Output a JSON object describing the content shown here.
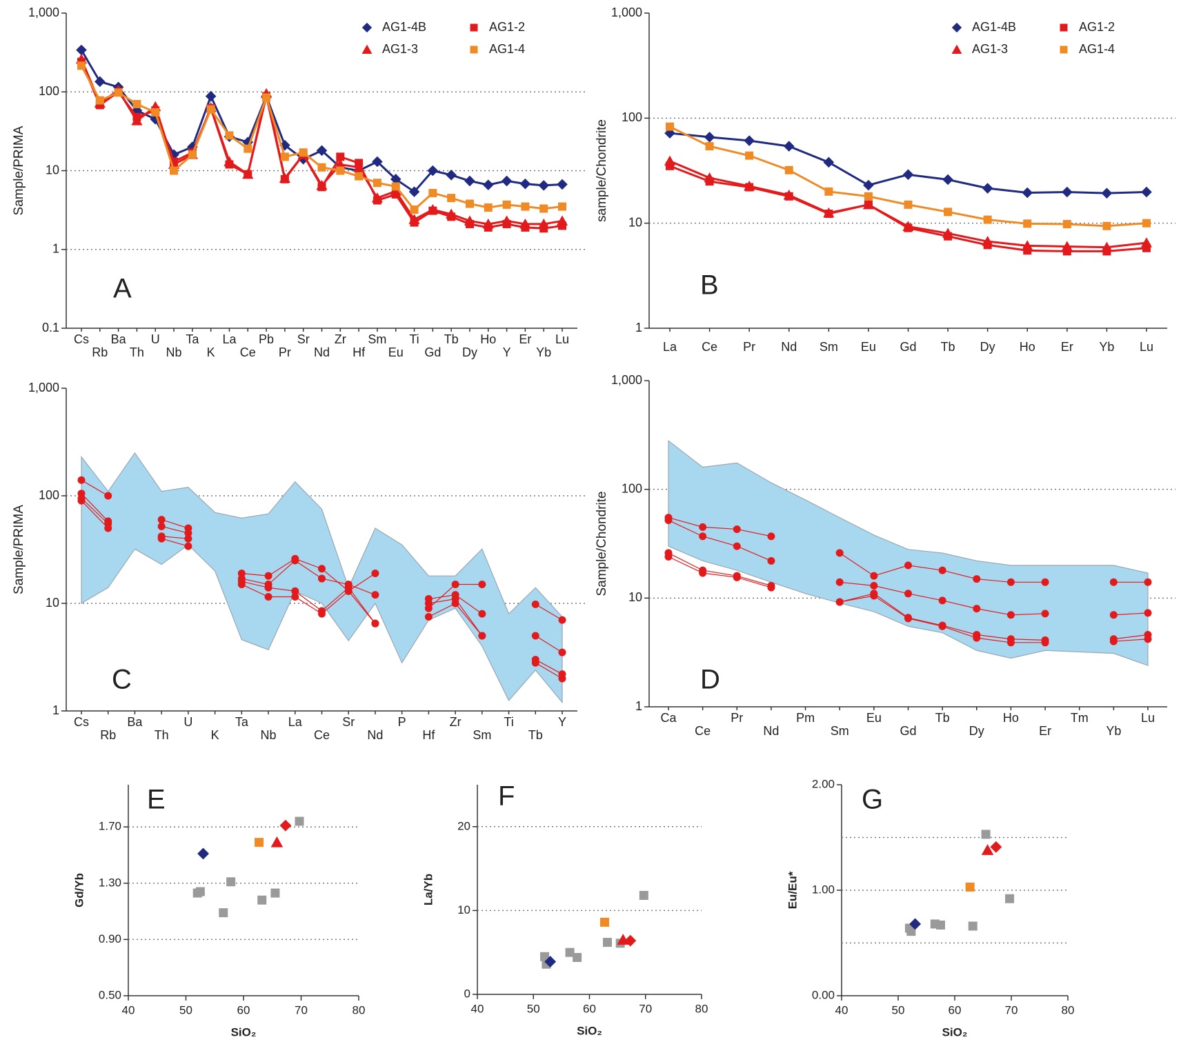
{
  "chart_data": [
    {
      "type": "line",
      "annotation": "A",
      "ylabel": "Sample/PRIMA",
      "log_y": true,
      "ylim": [
        0.1,
        1000
      ],
      "yticks": [
        0.1,
        1,
        10,
        100,
        {
          "value": 1000,
          "label": "1,000"
        }
      ],
      "grid": true,
      "x_label_stagger": true,
      "legend": "upper right",
      "categories": [
        "Cs",
        "Rb",
        "Ba",
        "Th",
        "U",
        "Nb",
        "Ta",
        "K",
        "La",
        "Ce",
        "Pb",
        "Pr",
        "Sr",
        "Nd",
        "Zr",
        "Hf",
        "Sm",
        "Eu",
        "Ti",
        "Gd",
        "Tb",
        "Dy",
        "Ho",
        "Y",
        "Er",
        "Yb",
        "Lu"
      ],
      "series": [
        {
          "name": "AG1-4B",
          "color": "#1f2a80",
          "marker": "diamond",
          "values": [
            340,
            135,
            115,
            58,
            45,
            16,
            20,
            88,
            27,
            23,
            88,
            21,
            14,
            18,
            11,
            10,
            13,
            7.8,
            5.4,
            10,
            8.8,
            7.4,
            6.6,
            7.4,
            6.8,
            6.5,
            6.7
          ]
        },
        {
          "name": "AG1-2",
          "color": "#e31a1c",
          "marker": "square",
          "values": [
            240,
            68,
            100,
            48,
            58,
            13,
            17,
            62,
            12,
            9,
            88,
            7.8,
            16,
            6.2,
            15,
            12.5,
            4.2,
            5,
            2.2,
            3.1,
            2.6,
            2.1,
            1.9,
            2.1,
            1.9,
            1.85,
            2
          ]
        },
        {
          "name": "AG1-3",
          "color": "#e31a1c",
          "marker": "triangle",
          "values": [
            260,
            72,
            105,
            43,
            65,
            12,
            16,
            63,
            13,
            9,
            95,
            8,
            16,
            6.5,
            12,
            11,
            4.5,
            5.5,
            2.4,
            3.2,
            2.8,
            2.3,
            2.1,
            2.3,
            2.1,
            2.1,
            2.3
          ]
        },
        {
          "name": "AG1-4",
          "color": "#f08a24",
          "marker": "square",
          "values": [
            215,
            78,
            98,
            70,
            55,
            10,
            16,
            60,
            28,
            19,
            85,
            15,
            17,
            11,
            10,
            8.5,
            7,
            6.3,
            3.2,
            5.2,
            4.5,
            3.8,
            3.4,
            3.7,
            3.5,
            3.3,
            3.5
          ]
        }
      ]
    },
    {
      "type": "line",
      "annotation": "B",
      "ylabel": "sample/Chondrite",
      "log_y": true,
      "ylim": [
        1,
        1000
      ],
      "yticks": [
        1,
        10,
        100,
        {
          "value": 1000,
          "label": "1,000"
        }
      ],
      "grid": true,
      "legend": "upper right",
      "categories": [
        "La",
        "Ce",
        "Pr",
        "Nd",
        "Sm",
        "Eu",
        "Gd",
        "Tb",
        "Dy",
        "Ho",
        "Er",
        "Yb",
        "Lu"
      ],
      "series": [
        {
          "name": "AG1-4B",
          "color": "#1f2a80",
          "marker": "diamond",
          "values": [
            72,
            66,
            61,
            54,
            38,
            23,
            29,
            26,
            21.5,
            19.5,
            19.8,
            19.3,
            19.8
          ]
        },
        {
          "name": "AG1-2",
          "color": "#e31a1c",
          "marker": "square",
          "values": [
            35,
            25,
            22,
            18,
            12.3,
            15,
            9,
            7.5,
            6.2,
            5.5,
            5.4,
            5.4,
            5.8
          ]
        },
        {
          "name": "AG1-3",
          "color": "#e31a1c",
          "marker": "triangle",
          "values": [
            39,
            27,
            22.5,
            18.5,
            12.5,
            15,
            9.3,
            8,
            6.7,
            6.1,
            6,
            5.9,
            6.5
          ]
        },
        {
          "name": "AG1-4",
          "color": "#f08a24",
          "marker": "square",
          "values": [
            83,
            54,
            44,
            32,
            20,
            18,
            15,
            12.8,
            10.8,
            9.9,
            9.8,
            9.4,
            10
          ]
        }
      ]
    },
    {
      "type": "line",
      "annotation": "C",
      "ylabel": "Sample/PRIMA",
      "log_y": true,
      "ylim": [
        1,
        1000
      ],
      "yticks": [
        1,
        10,
        100,
        {
          "value": 1000,
          "label": "1,000"
        }
      ],
      "grid": true,
      "x_label_stagger": true,
      "categories": [
        "Cs",
        "Rb",
        "Ba",
        "Th",
        "U",
        "K",
        "Ta",
        "Nb",
        "La",
        "Ce",
        "Sr",
        "Nd",
        "P",
        "Hf",
        "Zr",
        "Sm",
        "Ti",
        "Tb",
        "Y"
      ],
      "band": {
        "color": "#a8d8f0",
        "upper": [
          230,
          110,
          250,
          110,
          120,
          70,
          62,
          68,
          135,
          75,
          14,
          50,
          35,
          18,
          18,
          32,
          8,
          14,
          7.5
        ],
        "lower": [
          10,
          14,
          32,
          23,
          35,
          20,
          4.6,
          3.7,
          13,
          10,
          4.5,
          10,
          2.8,
          7,
          9,
          4,
          1.25,
          2.4,
          1.2
        ]
      },
      "series": [
        {
          "color": "#e31a1c",
          "marker": "circle",
          "values": [
            140,
            100,
            null,
            60,
            50,
            null,
            19,
            18,
            26,
            21,
            13,
            19,
            null,
            9,
            15,
            15,
            null,
            9.8,
            7
          ]
        },
        {
          "color": "#e31a1c",
          "marker": "circle",
          "values": [
            105,
            58,
            null,
            52,
            45,
            null,
            17,
            15,
            25,
            17,
            15,
            12,
            null,
            11,
            12,
            8,
            null,
            5,
            3.5
          ]
        },
        {
          "color": "#e31a1c",
          "marker": "circle",
          "values": [
            95,
            55,
            null,
            42,
            40,
            null,
            16,
            14,
            13,
            8.5,
            14,
            6.5,
            null,
            10,
            11,
            5,
            null,
            3,
            2.2
          ]
        },
        {
          "color": "#e31a1c",
          "marker": "circle",
          "values": [
            90,
            50,
            null,
            40,
            34,
            null,
            15,
            11.5,
            11.5,
            8,
            13,
            6.5,
            null,
            7.5,
            10,
            5,
            null,
            2.8,
            2
          ]
        }
      ]
    },
    {
      "type": "line",
      "annotation": "D",
      "ylabel": "Sample/Chondrite",
      "log_y": true,
      "ylim": [
        1,
        1000
      ],
      "yticks": [
        1,
        10,
        100,
        {
          "value": 1000,
          "label": "1,000"
        }
      ],
      "grid": true,
      "x_label_stagger": true,
      "categories": [
        "Ca",
        "Ce",
        "Pr",
        "Nd",
        "Pm",
        "Sm",
        "Eu",
        "Gd",
        "Tb",
        "Dy",
        "Ho",
        "Er",
        "Tm",
        "Yb",
        "Lu"
      ],
      "band": {
        "color": "#a8d8f0",
        "upper": [
          280,
          160,
          175,
          115,
          80,
          55,
          38,
          28,
          26,
          22,
          20,
          20,
          20,
          20,
          17
        ],
        "lower": [
          30,
          22,
          18,
          14,
          11,
          9,
          7.5,
          5.5,
          4.8,
          3.3,
          2.8,
          3.3,
          3.2,
          3.1,
          2.4
        ]
      },
      "series": [
        {
          "color": "#e31a1c",
          "marker": "circle",
          "values": [
            55,
            45,
            43,
            37,
            null,
            26,
            16,
            20,
            18,
            15,
            14,
            14,
            null,
            14,
            14
          ]
        },
        {
          "color": "#e31a1c",
          "marker": "circle",
          "values": [
            52,
            37,
            30,
            22,
            null,
            14,
            13,
            11,
            9.5,
            8,
            7,
            7.2,
            null,
            7,
            7.3
          ]
        },
        {
          "color": "#e31a1c",
          "marker": "circle",
          "values": [
            26,
            18,
            16,
            13,
            null,
            9.2,
            11,
            6.6,
            5.6,
            4.6,
            4.2,
            4.1,
            null,
            4.2,
            4.6
          ]
        },
        {
          "color": "#e31a1c",
          "marker": "circle",
          "values": [
            24,
            17,
            15.5,
            12.5,
            null,
            9.2,
            10.5,
            6.5,
            5.5,
            4.3,
            3.9,
            3.9,
            null,
            4,
            4.2
          ]
        }
      ]
    },
    {
      "type": "scatter",
      "annotation": "E",
      "xlabel": "SiO₂",
      "ylabel": "Gd/Yb",
      "xlim": [
        40,
        80
      ],
      "xticks": [
        40,
        50,
        60,
        70,
        80
      ],
      "ylim": [
        0.5,
        2.0
      ],
      "yticks": [
        {
          "value": 0.5,
          "label": "0.50"
        },
        {
          "value": 0.9,
          "label": "0.90"
        },
        {
          "value": 1.3,
          "label": "1.30"
        },
        {
          "value": 1.7,
          "label": "1.70"
        }
      ],
      "grid": true,
      "series": [
        {
          "color": "#9a9a9a",
          "marker": "square",
          "x": [
            52,
            52.5,
            56.5,
            57.8,
            63.2,
            65.5,
            69.7
          ],
          "values": [
            1.23,
            1.24,
            1.09,
            1.31,
            1.18,
            1.23,
            1.74
          ]
        },
        {
          "color": "#1f2a80",
          "marker": "diamond",
          "x": [
            53
          ],
          "values": [
            1.51
          ]
        },
        {
          "color": "#f08a24",
          "marker": "square",
          "x": [
            62.7
          ],
          "values": [
            1.59
          ]
        },
        {
          "color": "#e31a1c",
          "marker": "triangle",
          "x": [
            65.8
          ],
          "values": [
            1.59
          ]
        },
        {
          "color": "#e31a1c",
          "marker": "diamond",
          "x": [
            67.3
          ],
          "values": [
            1.71
          ]
        }
      ]
    },
    {
      "type": "scatter",
      "annotation": "F",
      "xlabel": "SiO₂",
      "ylabel": "La/Yb",
      "xlim": [
        40,
        80
      ],
      "xticks": [
        40,
        50,
        60,
        70,
        80
      ],
      "ylim": [
        0,
        25
      ],
      "yticks": [
        0,
        10,
        20
      ],
      "grid": true,
      "series": [
        {
          "color": "#9a9a9a",
          "marker": "square",
          "x": [
            52,
            52.3,
            56.5,
            57.8,
            63.2,
            65.5,
            69.7
          ],
          "values": [
            4.5,
            3.6,
            5,
            4.4,
            6.2,
            6.1,
            11.8
          ]
        },
        {
          "color": "#1f2a80",
          "marker": "diamond",
          "x": [
            53
          ],
          "values": [
            3.9
          ]
        },
        {
          "color": "#f08a24",
          "marker": "square",
          "x": [
            62.7
          ],
          "values": [
            8.6
          ]
        },
        {
          "color": "#e31a1c",
          "marker": "triangle",
          "x": [
            66
          ],
          "values": [
            6.5
          ]
        },
        {
          "color": "#e31a1c",
          "marker": "diamond",
          "x": [
            67.3
          ],
          "values": [
            6.4
          ]
        }
      ]
    },
    {
      "type": "scatter",
      "annotation": "G",
      "xlabel": "SiO₂",
      "ylabel": "Eu/Eu*",
      "xlim": [
        40,
        80
      ],
      "xticks": [
        40,
        50,
        60,
        70,
        80
      ],
      "ylim": [
        0,
        2
      ],
      "yticks": [
        {
          "value": 0,
          "label": "0.00"
        },
        {
          "value": 1,
          "label": "1.00"
        },
        {
          "value": 2,
          "label": "2.00"
        }
      ],
      "grid": true,
      "minor_grid": [
        0.5,
        1.5
      ],
      "series": [
        {
          "color": "#9a9a9a",
          "marker": "square",
          "x": [
            52,
            52.3,
            56.5,
            57.5,
            63.2,
            65.5,
            69.7
          ],
          "values": [
            0.64,
            0.61,
            0.68,
            0.67,
            0.66,
            1.53,
            0.92
          ]
        },
        {
          "color": "#1f2a80",
          "marker": "diamond",
          "x": [
            53
          ],
          "values": [
            0.68
          ]
        },
        {
          "color": "#f08a24",
          "marker": "square",
          "x": [
            62.7
          ],
          "values": [
            1.03
          ]
        },
        {
          "color": "#e31a1c",
          "marker": "triangle",
          "x": [
            65.8
          ],
          "values": [
            1.38
          ]
        },
        {
          "color": "#e31a1c",
          "marker": "diamond",
          "x": [
            67.3
          ],
          "values": [
            1.41
          ]
        }
      ]
    }
  ]
}
